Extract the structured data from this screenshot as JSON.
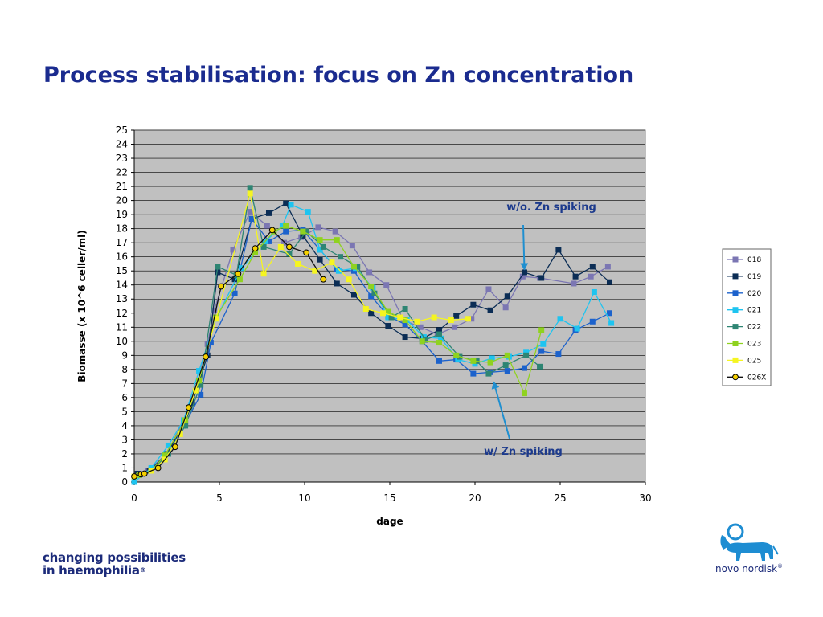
{
  "title": "Process stabilisation: focus on Zn concentration",
  "footer": {
    "tagline_line1": "changing possibilities",
    "tagline_line2": "in haemophilia",
    "tagline_mark": "®"
  },
  "brand": {
    "name": "novo nordisk",
    "mark": "®",
    "logo_icon": "apis-bull-icon"
  },
  "colors": {
    "title": "#1a2b8f",
    "plot_bg": "#c0c0c0",
    "annotation": "#1c3a8c",
    "arrow": "#1f8fd0"
  },
  "chart_data": {
    "type": "line",
    "xlabel": "dage",
    "ylabel": "Biomasse (x 10^6 celler/ml)",
    "xlim": [
      0,
      30
    ],
    "ylim": [
      0,
      25
    ],
    "xticks": [
      0,
      5,
      10,
      15,
      20,
      25,
      30
    ],
    "yticks": [
      0,
      1,
      2,
      3,
      4,
      5,
      6,
      7,
      8,
      9,
      10,
      11,
      12,
      13,
      14,
      15,
      16,
      17,
      18,
      19,
      20,
      21,
      22,
      23,
      24,
      25
    ],
    "grid": "horizontal",
    "legend": "right",
    "series": [
      {
        "name": "018",
        "color": "#7b76b3",
        "marker": "square",
        "points": [
          [
            0.2,
            0.6
          ],
          [
            0.8,
            0.8
          ],
          [
            1.9,
            2.0
          ],
          [
            3.4,
            5.6
          ],
          [
            4.3,
            9.8
          ],
          [
            4.7,
            12.2
          ],
          [
            5.8,
            16.5
          ],
          [
            6.8,
            19.2
          ],
          [
            7.8,
            18.2
          ],
          [
            8.8,
            17.0
          ],
          [
            9.8,
            17.4
          ],
          [
            10.8,
            18.1
          ],
          [
            11.8,
            17.8
          ],
          [
            12.8,
            16.8
          ],
          [
            13.8,
            14.9
          ],
          [
            14.8,
            14.0
          ],
          [
            15.8,
            11.5
          ],
          [
            16.8,
            11.0
          ],
          [
            17.8,
            10.5
          ],
          [
            18.8,
            11.0
          ],
          [
            19.8,
            11.6
          ],
          [
            20.8,
            13.7
          ],
          [
            21.8,
            12.4
          ],
          [
            22.8,
            14.6
          ],
          [
            23.8,
            14.5
          ],
          [
            25.8,
            14.1
          ],
          [
            26.8,
            14.6
          ],
          [
            27.8,
            15.3
          ]
        ]
      },
      {
        "name": "019",
        "color": "#0b2d55",
        "marker": "square",
        "points": [
          [
            0.2,
            0.6
          ],
          [
            0.9,
            0.8
          ],
          [
            1.9,
            2.0
          ],
          [
            2.9,
            4.0
          ],
          [
            3.4,
            5.6
          ],
          [
            4.3,
            9.0
          ],
          [
            4.9,
            14.9
          ],
          [
            5.9,
            14.4
          ],
          [
            6.9,
            18.7
          ],
          [
            7.9,
            19.1
          ],
          [
            8.9,
            19.8
          ],
          [
            9.9,
            17.5
          ],
          [
            10.9,
            15.8
          ],
          [
            11.9,
            14.1
          ],
          [
            12.9,
            13.3
          ],
          [
            13.9,
            12.0
          ],
          [
            14.9,
            11.1
          ],
          [
            15.9,
            10.3
          ],
          [
            16.9,
            10.2
          ],
          [
            17.9,
            10.8
          ],
          [
            18.9,
            11.8
          ],
          [
            19.9,
            12.6
          ],
          [
            20.9,
            12.2
          ],
          [
            21.9,
            13.2
          ],
          [
            22.9,
            14.9
          ],
          [
            23.9,
            14.5
          ],
          [
            24.9,
            16.5
          ],
          [
            25.9,
            14.6
          ],
          [
            26.9,
            15.3
          ],
          [
            27.9,
            14.2
          ]
        ]
      },
      {
        "name": "020",
        "color": "#1c62cc",
        "marker": "square",
        "points": [
          [
            0.0,
            0.3
          ],
          [
            1.0,
            0.9
          ],
          [
            2.0,
            2.0
          ],
          [
            3.0,
            4.2
          ],
          [
            3.9,
            6.2
          ],
          [
            4.5,
            9.9
          ],
          [
            5.9,
            13.4
          ],
          [
            6.9,
            18.7
          ],
          [
            7.9,
            17.1
          ],
          [
            8.9,
            17.8
          ],
          [
            9.9,
            17.9
          ],
          [
            10.9,
            16.5
          ],
          [
            11.9,
            15.1
          ],
          [
            12.9,
            15.0
          ],
          [
            13.9,
            13.2
          ],
          [
            14.9,
            11.8
          ],
          [
            15.9,
            11.2
          ],
          [
            16.9,
            10.0
          ],
          [
            17.9,
            8.6
          ],
          [
            18.9,
            8.7
          ],
          [
            19.9,
            7.7
          ],
          [
            20.9,
            7.8
          ],
          [
            21.9,
            7.9
          ],
          [
            22.9,
            8.1
          ],
          [
            23.9,
            9.3
          ],
          [
            24.9,
            9.1
          ],
          [
            25.9,
            10.8
          ],
          [
            26.9,
            11.4
          ],
          [
            27.9,
            12.0
          ]
        ]
      },
      {
        "name": "021",
        "color": "#1ec4f0",
        "marker": "square",
        "points": [
          [
            0.0,
            0.0
          ],
          [
            1.0,
            1.0
          ],
          [
            2.0,
            2.6
          ],
          [
            2.9,
            4.4
          ],
          [
            3.8,
            7.9
          ],
          [
            4.8,
            11.6
          ],
          [
            6.3,
            15.2
          ],
          [
            7.7,
            17.1
          ],
          [
            8.7,
            18.2
          ],
          [
            9.2,
            19.7
          ],
          [
            10.2,
            19.2
          ],
          [
            10.9,
            16.5
          ],
          [
            12.0,
            15.0
          ],
          [
            13.0,
            15.2
          ],
          [
            14.0,
            13.8
          ],
          [
            14.9,
            11.7
          ],
          [
            16.0,
            11.5
          ],
          [
            17.0,
            10.3
          ],
          [
            18.0,
            10.2
          ],
          [
            19.0,
            8.7
          ],
          [
            20.0,
            8.4
          ],
          [
            21.0,
            8.8
          ],
          [
            22.0,
            8.9
          ],
          [
            23.0,
            9.2
          ],
          [
            24.0,
            9.8
          ],
          [
            25.0,
            11.6
          ],
          [
            26.0,
            10.9
          ],
          [
            27.0,
            13.5
          ],
          [
            28.0,
            11.3
          ]
        ]
      },
      {
        "name": "022",
        "color": "#2e8573",
        "marker": "square",
        "points": [
          [
            0.3,
            0.5
          ],
          [
            1.0,
            0.8
          ],
          [
            2.0,
            2.0
          ],
          [
            3.0,
            4.0
          ],
          [
            3.9,
            6.9
          ],
          [
            4.9,
            15.3
          ],
          [
            6.0,
            14.7
          ],
          [
            6.8,
            20.9
          ],
          [
            7.6,
            16.7
          ],
          [
            9.1,
            16.2
          ],
          [
            10.1,
            17.8
          ],
          [
            11.1,
            16.7
          ],
          [
            12.1,
            16.0
          ],
          [
            13.1,
            15.3
          ],
          [
            14.1,
            13.4
          ],
          [
            15.1,
            11.7
          ],
          [
            15.9,
            12.3
          ],
          [
            17.1,
            10.1
          ],
          [
            17.9,
            10.5
          ],
          [
            19.1,
            8.9
          ],
          [
            20.1,
            8.6
          ],
          [
            20.8,
            7.7
          ],
          [
            21.8,
            8.3
          ],
          [
            23.0,
            9.0
          ],
          [
            23.8,
            8.2
          ]
        ]
      },
      {
        "name": "023",
        "color": "#8fd21f",
        "marker": "square",
        "points": [
          [
            0.3,
            0.5
          ],
          [
            1.0,
            0.8
          ],
          [
            1.8,
            1.9
          ],
          [
            3.0,
            4.4
          ],
          [
            3.8,
            7.2
          ],
          [
            4.8,
            11.7
          ],
          [
            6.2,
            14.4
          ],
          [
            7.1,
            16.3
          ],
          [
            8.2,
            17.8
          ],
          [
            8.9,
            18.2
          ],
          [
            9.9,
            17.8
          ],
          [
            10.9,
            17.2
          ],
          [
            11.9,
            17.2
          ],
          [
            12.9,
            15.3
          ],
          [
            13.9,
            13.9
          ],
          [
            14.9,
            12.1
          ],
          [
            15.9,
            11.5
          ],
          [
            16.9,
            10.0
          ],
          [
            17.9,
            9.9
          ],
          [
            18.9,
            9.0
          ],
          [
            19.9,
            8.6
          ],
          [
            20.9,
            8.5
          ],
          [
            21.9,
            9.0
          ],
          [
            22.9,
            6.3
          ],
          [
            23.9,
            10.8
          ]
        ]
      },
      {
        "name": "025",
        "color": "#f5f521",
        "marker": "square",
        "points": [
          [
            0.0,
            0.4
          ],
          [
            1.0,
            0.8
          ],
          [
            1.8,
            1.6
          ],
          [
            2.7,
            3.4
          ],
          [
            3.6,
            6.5
          ],
          [
            4.8,
            11.6
          ],
          [
            6.8,
            20.5
          ],
          [
            7.6,
            14.8
          ],
          [
            8.6,
            16.7
          ],
          [
            9.6,
            15.5
          ],
          [
            10.6,
            15.0
          ],
          [
            11.6,
            15.6
          ],
          [
            12.6,
            14.4
          ],
          [
            13.6,
            12.3
          ],
          [
            14.6,
            12.0
          ],
          [
            15.6,
            11.7
          ],
          [
            16.6,
            11.4
          ],
          [
            17.6,
            11.7
          ],
          [
            18.6,
            11.5
          ],
          [
            19.6,
            11.6
          ]
        ]
      },
      {
        "name": "026X",
        "color": "#111111",
        "marker": "circle",
        "fill": "#f5d000",
        "points": [
          [
            0.0,
            0.4
          ],
          [
            0.4,
            0.55
          ],
          [
            0.6,
            0.6
          ],
          [
            1.4,
            1.0
          ],
          [
            2.4,
            2.5
          ],
          [
            3.2,
            5.3
          ],
          [
            4.2,
            8.9
          ],
          [
            5.1,
            13.9
          ],
          [
            6.1,
            14.8
          ],
          [
            7.1,
            16.6
          ],
          [
            8.1,
            17.9
          ],
          [
            9.1,
            16.7
          ],
          [
            10.1,
            16.3
          ],
          [
            11.1,
            14.4
          ]
        ]
      }
    ],
    "annotations": [
      {
        "text": "w/o. Zn spiking",
        "arrow_to": [
          22.9,
          15.1
        ]
      },
      {
        "text": "w/ Zn spiking",
        "arrow_to": [
          21.1,
          7.1
        ]
      }
    ]
  }
}
